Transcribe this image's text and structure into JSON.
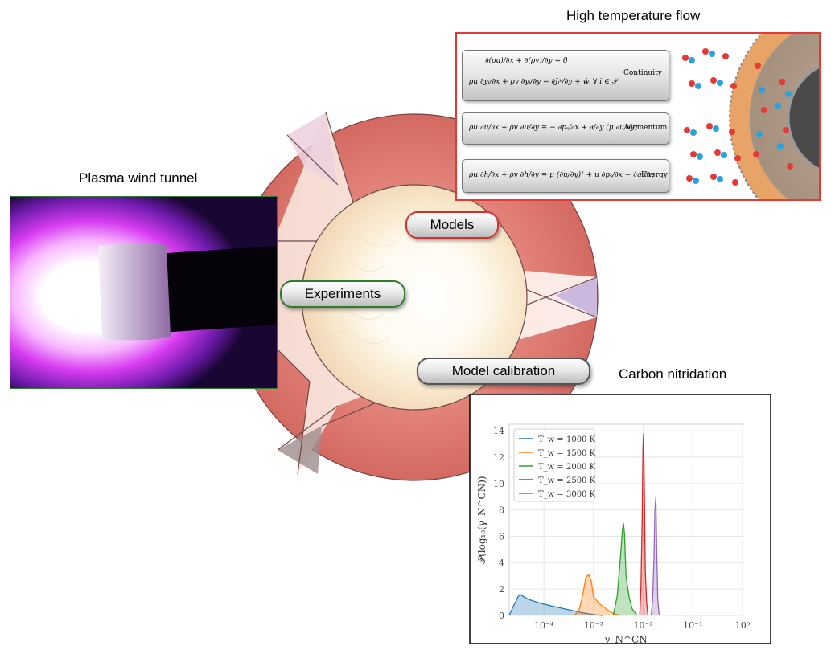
{
  "labels": {
    "high_temp_flow": "High temperature flow",
    "plasma_wind_tunnel": "Plasma wind tunnel",
    "carbon_nitridation": "Carbon nitridation"
  },
  "buttons": {
    "models": "Models",
    "experiments": "Experiments",
    "model_calibration": "Model calibration"
  },
  "colors": {
    "models_border": "#d32f2f",
    "experiments_border": "#2e7d32",
    "calibration_border": "#555555",
    "flow_box_border": "#e53935",
    "tunnel_border": "#2e7d32",
    "wheel_red": "#d9706a"
  },
  "equations": {
    "continuity_line1": "∂(ρu)/∂x + ∂(ρv)/∂y = 0",
    "continuity_line2": "ρu ∂yᵢ/∂x + ρv ∂yᵢ/∂y = ∂Jᵢʸ/∂y + ẇᵢ   ∀ i ∈ 𝒮",
    "continuity_label": "Continuity",
    "momentum_line": "ρu ∂u/∂x + ρv ∂u/∂y = − ∂pₛ/∂x + ∂/∂y (μ ∂u/∂y)",
    "momentum_label": "Momentum",
    "energy_line": "ρu ∂h/∂x + ρv ∂h/∂y = μ (∂u/∂y)² + u ∂pₛ/∂x − ∂qʸ/∂y",
    "energy_label": "Energy"
  },
  "chart_data": {
    "type": "area",
    "title": "",
    "xlabel": "γ_N^CN",
    "ylabel": "𝒫(log₁₀(γ_N^CN))",
    "xscale": "log",
    "xlim": [
      2e-05,
      1
    ],
    "ylim": [
      0,
      14.5
    ],
    "x_ticks": [
      "10⁻⁴",
      "10⁻³",
      "10⁻²",
      "10⁻¹",
      "10⁰"
    ],
    "y_ticks": [
      "0",
      "2",
      "4",
      "6",
      "8",
      "10",
      "12",
      "14"
    ],
    "legend_position": "top-left",
    "grid": true,
    "series": [
      {
        "name": "T_w = 1000 K",
        "color": "#1f77b4",
        "x": [
          2e-05,
          2.5e-05,
          3e-05,
          3.3e-05,
          3.8e-05,
          5e-05,
          8e-05,
          0.00015,
          0.0003,
          0.0006,
          0.001,
          0.0015
        ],
        "y": [
          0,
          0.8,
          1.4,
          1.6,
          1.45,
          1.2,
          0.95,
          0.7,
          0.45,
          0.2,
          0.07,
          0
        ]
      },
      {
        "name": "T_w = 1500 K",
        "color": "#ff7f0e",
        "x": [
          0.0004,
          0.0005,
          0.0006,
          0.0007,
          0.0008,
          0.0009,
          0.001,
          0.0013,
          0.0018,
          0.0025,
          0.0035
        ],
        "y": [
          0,
          0.3,
          1.5,
          2.9,
          3.1,
          2.6,
          1.4,
          0.9,
          0.5,
          0.15,
          0
        ]
      },
      {
        "name": "T_w = 2000 K",
        "color": "#2ca02c",
        "x": [
          0.0025,
          0.003,
          0.0035,
          0.0038,
          0.004,
          0.0042,
          0.0045,
          0.0052,
          0.006,
          0.0075
        ],
        "y": [
          0,
          1.5,
          4.5,
          6.4,
          7.0,
          6.2,
          3.0,
          1.4,
          0.5,
          0
        ]
      },
      {
        "name": "T_w = 2500 K",
        "color": "#d62728",
        "x": [
          0.0085,
          0.009,
          0.0095,
          0.0099,
          0.0102,
          0.0106,
          0.011,
          0.0117,
          0.0125
        ],
        "y": [
          0,
          2.0,
          7.0,
          12.8,
          13.8,
          9.0,
          3.5,
          1.0,
          0
        ]
      },
      {
        "name": "T_w = 3000 K",
        "color": "#9467bd",
        "x": [
          0.0145,
          0.0155,
          0.0165,
          0.0172,
          0.018,
          0.0188,
          0.0197,
          0.021
        ],
        "y": [
          0,
          1.2,
          4.5,
          8.0,
          9.0,
          4.5,
          1.2,
          0
        ]
      }
    ]
  }
}
